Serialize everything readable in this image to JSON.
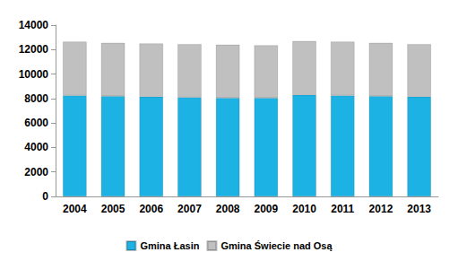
{
  "chart_data": {
    "type": "bar",
    "stacked": true,
    "grid": false,
    "legend": "bottom",
    "categories": [
      "2004",
      "2005",
      "2006",
      "2007",
      "2008",
      "2009",
      "2010",
      "2011",
      "2012",
      "2013"
    ],
    "series": [
      {
        "name": "Gmina Łasin",
        "color": "#1cb2e4",
        "values": [
          8250,
          8200,
          8150,
          8100,
          8050,
          8050,
          8300,
          8250,
          8200,
          8150
        ]
      },
      {
        "name": "Gmina Świecie nad Osą",
        "color": "#c0c0c0",
        "values": [
          4400,
          4350,
          4350,
          4350,
          4350,
          4300,
          4400,
          4400,
          4350,
          4300
        ]
      }
    ],
    "ylim": [
      0,
      14000
    ],
    "yticks": [
      0,
      2000,
      4000,
      6000,
      8000,
      10000,
      12000,
      14000
    ]
  }
}
